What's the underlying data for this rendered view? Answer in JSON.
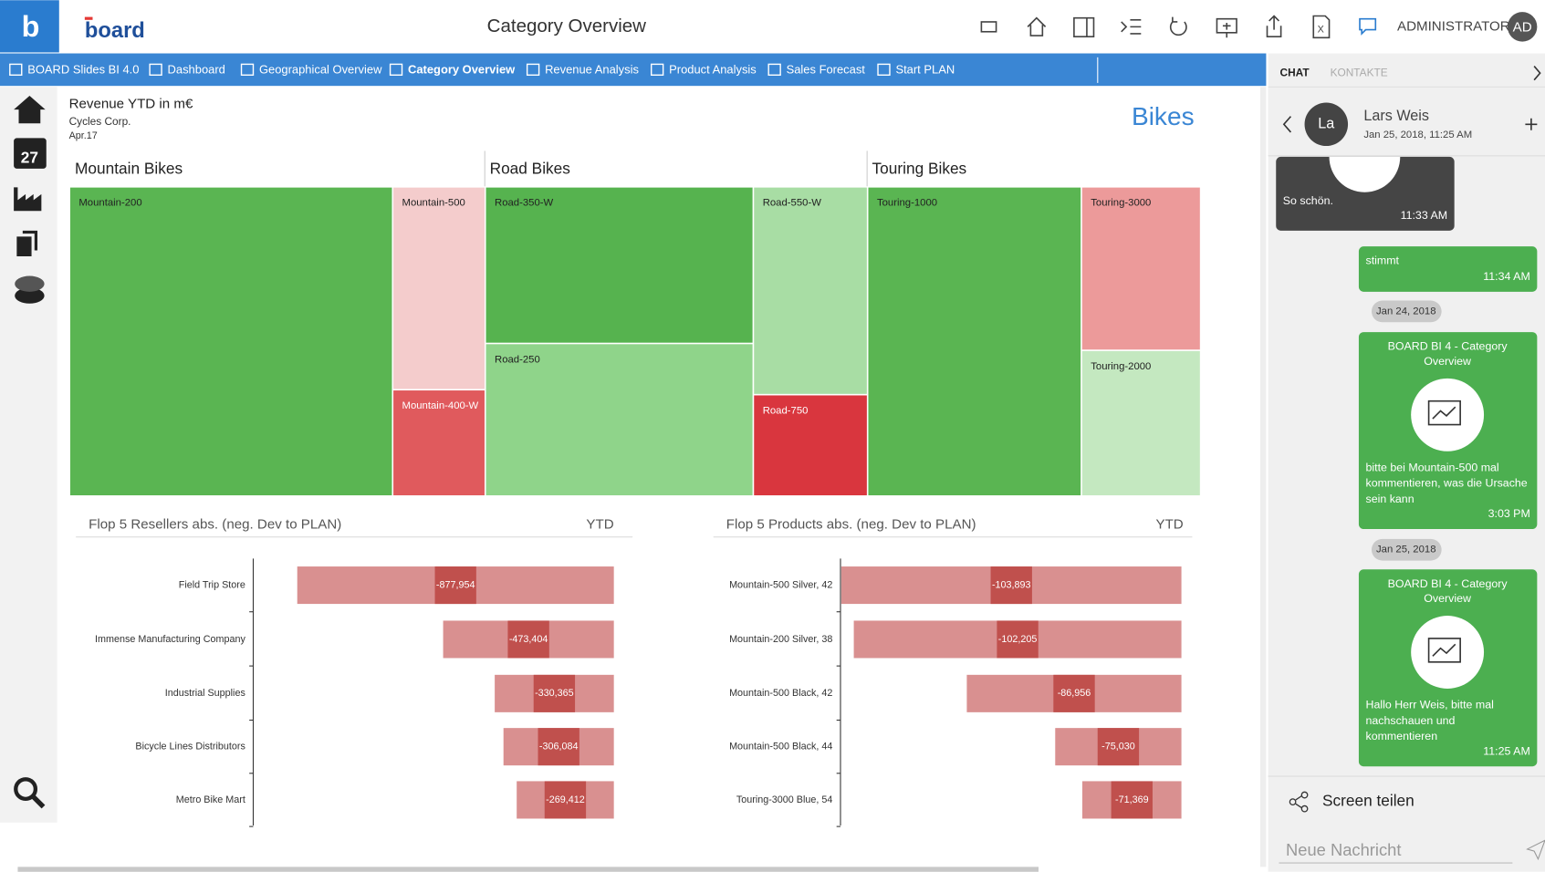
{
  "header": {
    "title": "Category Overview",
    "user": "ADMINISTRATOR",
    "initials": "AD"
  },
  "nav": {
    "items": [
      "BOARD Slides BI 4.0",
      "Dashboard",
      "Geographical Overview",
      "Category Overview",
      "Revenue Analysis",
      "Product Analysis",
      "Sales Forecast",
      "Start PLAN"
    ],
    "active": 3
  },
  "report": {
    "title": "Revenue YTD in m€",
    "company": "Cycles Corp.",
    "period": "Apr.17",
    "category": "Bikes",
    "treemap": {
      "groups": [
        {
          "name": "Mountain Bikes",
          "items": [
            {
              "label": "Mountain-200",
              "color": "#5ab552"
            },
            {
              "label": "Mountain-500",
              "color": "#f4cccc"
            },
            {
              "label": "Mountain-400-W",
              "color": "#e05a5d"
            }
          ]
        },
        {
          "name": "Road Bikes",
          "items": [
            {
              "label": "Road-350-W",
              "color": "#56b34f"
            },
            {
              "label": "Road-250",
              "color": "#8fd48a"
            },
            {
              "label": "Road-550-W",
              "color": "#a8dda4"
            },
            {
              "label": "Road-750",
              "color": "#d9363e"
            }
          ]
        },
        {
          "name": "Touring Bikes",
          "items": [
            {
              "label": "Touring-1000",
              "color": "#5ab552"
            },
            {
              "label": "Touring-3000",
              "color": "#ec9a9a"
            },
            {
              "label": "Touring-2000",
              "color": "#c4e8c0"
            }
          ]
        }
      ]
    },
    "charts": [
      {
        "type": "bar",
        "title": "Flop 5 Resellers abs. (neg. Dev to PLAN)",
        "period": "YTD",
        "categories": [
          "Field Trip Store",
          "Immense Manufacturing Company",
          "Industrial Supplies",
          "Bicycle Lines Distributors",
          "Metro Bike Mart"
        ],
        "values": [
          -877954,
          -473404,
          -330365,
          -306084,
          -269412
        ],
        "value_labels": [
          "-877,954",
          "-473,404",
          "-330,365",
          "-306,084",
          "-269,412"
        ],
        "xlim": [
          0,
          1000000
        ],
        "color": "#d99090",
        "label_color": "#c0504d"
      },
      {
        "type": "bar",
        "title": "Flop 5 Products abs. (neg. Dev to PLAN)",
        "period": "YTD",
        "categories": [
          "Mountain-500 Silver, 42",
          "Mountain-200 Silver, 38",
          "Mountain-500 Black, 42",
          "Mountain-500 Black, 44",
          "Touring-3000 Blue, 54"
        ],
        "values": [
          -103893,
          -102205,
          -86956,
          -75030,
          -71369
        ],
        "value_labels": [
          "-103,893",
          "-102,205",
          "-86,956",
          "-75,030",
          "-71,369"
        ],
        "xlim": [
          58000,
          104000
        ],
        "color": "#d99090",
        "label_color": "#c0504d"
      }
    ]
  },
  "chat": {
    "tabs": [
      "CHAT",
      "KONTAKTE"
    ],
    "contact": {
      "initials": "La",
      "name": "Lars Weis",
      "time": "Jan 25, 2018, 11:25 AM"
    },
    "messages": [
      {
        "lines": [
          "So schön."
        ],
        "time": "11:33 AM"
      },
      {
        "lines": [
          "stimmt"
        ],
        "time": "11:34 AM"
      },
      {
        "date": "Jan 24, 2018"
      },
      {
        "title": [
          "BOARD BI 4 - Category",
          "Overview"
        ],
        "lines": [
          "bitte bei Mountain-500 mal",
          "kommentieren, was die Ursache",
          "sein kann"
        ],
        "time": "3:03 PM"
      },
      {
        "date": "Jan 25, 2018"
      },
      {
        "title": [
          "BOARD BI 4 - Category",
          "Overview"
        ],
        "lines": [
          "Hallo Herr Weis, bitte mal",
          "nachschauen und",
          "kommentieren"
        ],
        "time": "11:25 AM"
      }
    ],
    "share": "Screen teilen",
    "placeholder": "Neue Nachricht"
  }
}
